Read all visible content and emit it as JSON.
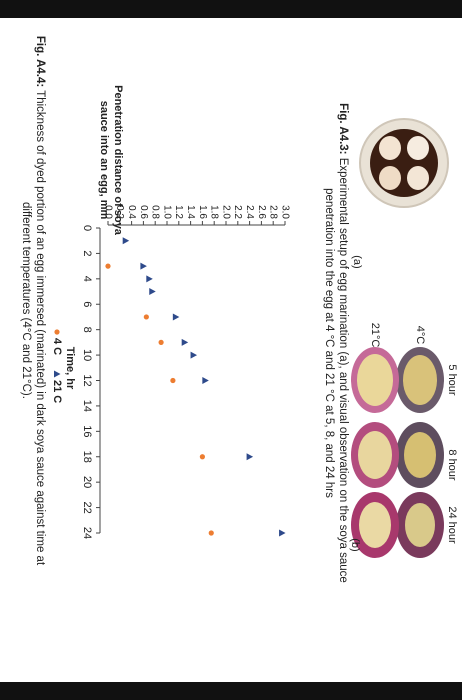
{
  "figure_a43": {
    "panel_a": "(a)",
    "panel_b": "(b)",
    "column_labels": [
      "5 hour",
      "8 hour",
      "24 hour"
    ],
    "row_labels": [
      "4°C",
      "21°C"
    ],
    "caption_label": "Fig. A4.3:",
    "caption_text": "Experimental setup of egg marination (a), and visual observation on the soya sauce penetration into the egg at 4 °C and 21 °C at 5, 8, and 24 hrs"
  },
  "figure_a44": {
    "caption_label": "Fig. A4.4:",
    "caption_text": "Thickness of dyed portion of an egg immersed (marinated) in dark soya sauce against time at different temperatures (4°C and 21°C)."
  },
  "chart_data": {
    "type": "scatter",
    "y_label": [
      "Penetration distance of soya",
      "sauce into an egg, mm"
    ],
    "x_label": "Time, hr",
    "series": [
      {
        "name": "4 C",
        "color": "#ed7d31",
        "marker": "circle",
        "x": [
          3,
          7,
          9,
          12,
          18,
          24
        ],
        "values": [
          0.0,
          0.65,
          0.9,
          1.1,
          1.6,
          1.75
        ]
      },
      {
        "name": "21 C",
        "color": "#2e4a8b",
        "marker": "triangle",
        "x": [
          1,
          3,
          4,
          5,
          7,
          9,
          10,
          12,
          18,
          24
        ],
        "values": [
          0.3,
          0.6,
          0.7,
          0.75,
          1.15,
          1.3,
          1.45,
          1.65,
          2.4,
          2.95
        ]
      }
    ],
    "xlim": [
      0,
      24
    ],
    "xticks": [
      0,
      2,
      4,
      6,
      8,
      10,
      12,
      14,
      16,
      18,
      20,
      22,
      24
    ],
    "ylim": [
      0,
      3
    ],
    "yticks": [
      {
        "value": 0,
        "label": "0.0"
      },
      0.2,
      0.4,
      0.6,
      0.8,
      {
        "value": 1,
        "label": "1.0"
      },
      1.2,
      1.4,
      1.6,
      1.8,
      {
        "value": 2,
        "label": "2.0"
      },
      2.2,
      2.4,
      2.6,
      2.8,
      {
        "value": 3,
        "label": "3.0"
      }
    ]
  }
}
